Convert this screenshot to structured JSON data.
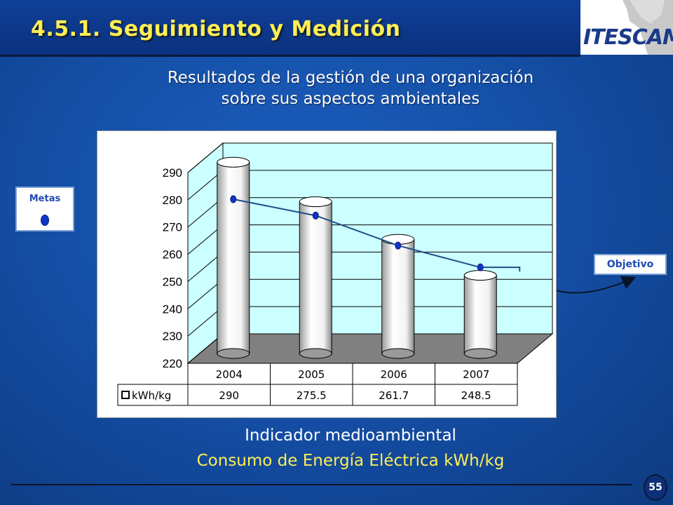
{
  "slide": {
    "title": "4.5.1. Seguimiento y Medición",
    "logo_text": "ITESCAM",
    "subtitle_line1": "Resultados de la gestión de una organización",
    "subtitle_line2": "sobre sus aspectos ambientales",
    "metas_label": "Metas",
    "objetivo_label": "Objetivo",
    "bottom_line1": "Indicador medioambiental",
    "bottom_line2": "Consumo de Energía Eléctrica kWh/kg",
    "page_number": "55"
  },
  "colors": {
    "title": "#ffee55",
    "bar_face": "#f2f2f2",
    "plot_wall": "#ccffff",
    "plot_floor": "#808080",
    "goal_line": "#1f4e8a",
    "goal_marker": "#1234c8"
  },
  "chart_data": {
    "type": "bar",
    "style": "3d-cylinder",
    "categories": [
      "2004",
      "2005",
      "2006",
      "2007"
    ],
    "series": [
      {
        "name": "kWh/kg",
        "values": [
          290,
          275.5,
          261.7,
          248.5
        ]
      }
    ],
    "table_values": [
      "290",
      "275.5",
      "261.7",
      "248.5"
    ],
    "overlay_line": {
      "values": [
        279,
        273,
        262,
        254
      ],
      "extends_to_objetivo": true
    },
    "ylim": [
      220,
      290
    ],
    "yticks": [
      220,
      230,
      240,
      250,
      260,
      270,
      280,
      290
    ],
    "grid": true,
    "data_table": true
  }
}
